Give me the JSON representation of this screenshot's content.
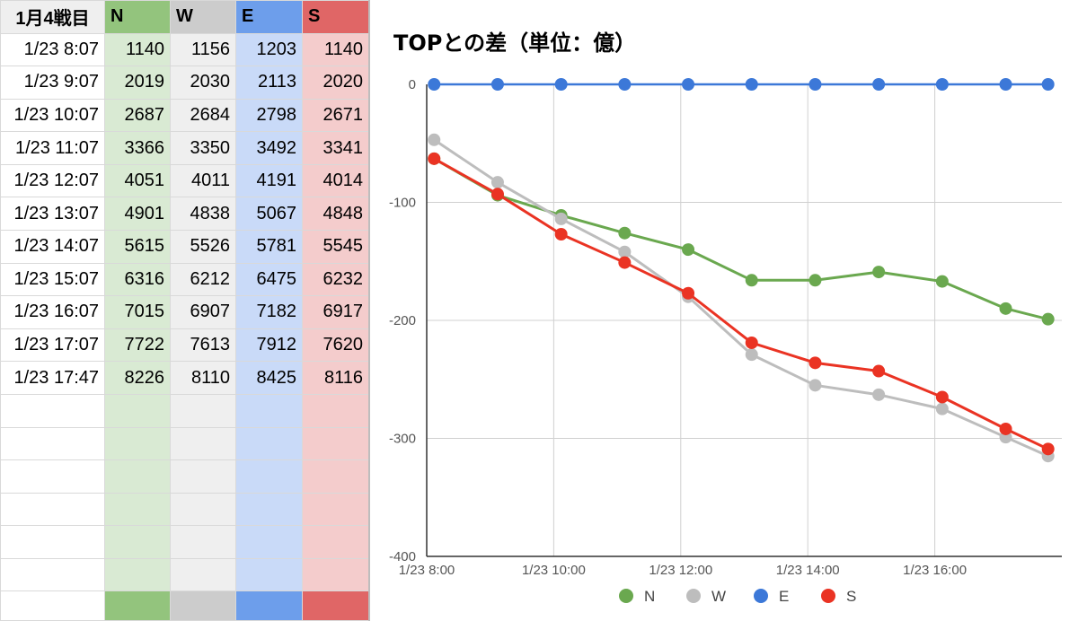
{
  "sheet": {
    "header": [
      "1月4戦目",
      "N",
      "W",
      "E",
      "S"
    ],
    "rows": [
      [
        "1/23 8:07",
        "1140",
        "1156",
        "1203",
        "1140"
      ],
      [
        "1/23 9:07",
        "2019",
        "2030",
        "2113",
        "2020"
      ],
      [
        "1/23 10:07",
        "2687",
        "2684",
        "2798",
        "2671"
      ],
      [
        "1/23 11:07",
        "3366",
        "3350",
        "3492",
        "3341"
      ],
      [
        "1/23 12:07",
        "4051",
        "4011",
        "4191",
        "4014"
      ],
      [
        "1/23 13:07",
        "4901",
        "4838",
        "5067",
        "4848"
      ],
      [
        "1/23 14:07",
        "5615",
        "5526",
        "5781",
        "5545"
      ],
      [
        "1/23 15:07",
        "6316",
        "6212",
        "6475",
        "6232"
      ],
      [
        "1/23 16:07",
        "7015",
        "6907",
        "7182",
        "6917"
      ],
      [
        "1/23 17:07",
        "7722",
        "7613",
        "7912",
        "7620"
      ],
      [
        "1/23 17:47",
        "8226",
        "8110",
        "8425",
        "8116"
      ]
    ],
    "empty_rows": 6,
    "colors": {
      "N": {
        "header": "#93c47d",
        "cell": "#d9ead3"
      },
      "W": {
        "header": "#cccccc",
        "cell": "#efefef"
      },
      "E": {
        "header": "#6d9eeb",
        "cell": "#c9daf8"
      },
      "S": {
        "header": "#e06666",
        "cell": "#f4cccc"
      },
      "label_header": "#efefef"
    }
  },
  "chart_data": {
    "type": "line",
    "title": "TOPとの差（単位：億）",
    "x": [
      "1/23 8:07",
      "1/23 9:07",
      "1/23 10:07",
      "1/23 11:07",
      "1/23 12:07",
      "1/23 13:07",
      "1/23 14:07",
      "1/23 15:07",
      "1/23 16:07",
      "1/23 17:07",
      "1/23 17:47"
    ],
    "x_ticks": [
      "1/23 8:00",
      "1/23 10:00",
      "1/23 12:00",
      "1/23 14:00",
      "1/23 16:00"
    ],
    "xlim": [
      "1/23 8:00",
      "1/23 18:00"
    ],
    "ylim": [
      -400,
      0
    ],
    "y_ticks": [
      "0",
      "-100",
      "-200",
      "-300",
      "-400"
    ],
    "grid": true,
    "legend": "bottom",
    "series": [
      {
        "name": "N",
        "color": "#6aa84f",
        "values": [
          -63,
          -94,
          -111,
          -126,
          -140,
          -166,
          -166,
          -159,
          -167,
          -190,
          -199
        ]
      },
      {
        "name": "W",
        "color": "#bdbdbd",
        "values": [
          -47,
          -83,
          -114,
          -142,
          -180,
          -229,
          -255,
          -263,
          -275,
          -299,
          -315
        ]
      },
      {
        "name": "E",
        "color": "#3c78d8",
        "values": [
          0,
          0,
          0,
          0,
          0,
          0,
          0,
          0,
          0,
          0,
          0
        ]
      },
      {
        "name": "S",
        "color": "#ea3323",
        "values": [
          -63,
          -93,
          -127,
          -151,
          -177,
          -219,
          -236,
          -243,
          -265,
          -292,
          -309
        ]
      }
    ]
  }
}
